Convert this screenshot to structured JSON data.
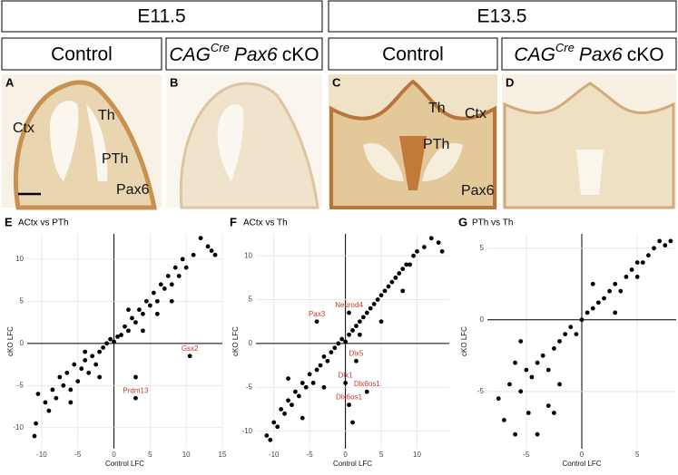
{
  "stages": [
    "E11.5",
    "E13.5"
  ],
  "panels": [
    {
      "letter": "A",
      "title": "Control",
      "labels": [
        "Ctx",
        "Th",
        "PTh",
        "Pax6"
      ]
    },
    {
      "letter": "B",
      "title": {
        "driver": "CAG",
        "superscript": "Cre",
        "gene": "Pax6",
        "suffix": "cKO"
      }
    },
    {
      "letter": "C",
      "title": "Control",
      "labels": [
        "Ctx",
        "Th",
        "PTh",
        "Pax6"
      ]
    },
    {
      "letter": "D",
      "title": {
        "driver": "CAG",
        "superscript": "Cre",
        "gene": "Pax6",
        "suffix": "cKO"
      }
    }
  ],
  "chart_data": [
    {
      "type": "scatter",
      "letter": "E",
      "title": "ACtx vs PTh",
      "x_label": "Control LFC",
      "y_label": "cKO LFC",
      "xlim": [
        -12,
        15
      ],
      "ylim": [
        -12.5,
        13
      ],
      "xticks": [
        -10,
        -5,
        0,
        5,
        10,
        15
      ],
      "yticks": [
        -10,
        -5,
        0,
        5,
        10
      ],
      "grid": true,
      "color": "#000000",
      "x": [
        -11,
        -10.8,
        -10.5,
        -9.5,
        -9,
        -8.5,
        -8,
        -7.5,
        -7,
        -6.5,
        -6,
        -5.5,
        -5,
        -4.5,
        -4,
        -3.5,
        -3,
        -2.5,
        -2,
        -1.5,
        -1,
        -0.5,
        0,
        0.5,
        1,
        1.5,
        2,
        2.5,
        3,
        3.5,
        4,
        4.5,
        5,
        5.5,
        6,
        6.5,
        7,
        7.5,
        8,
        8.5,
        9,
        9.5,
        10,
        11,
        12,
        13,
        13.5,
        14,
        -4,
        -2,
        2,
        4,
        6,
        8,
        -6,
        3
      ],
      "y": [
        -11,
        -9.5,
        -6,
        -7,
        -8,
        -5.5,
        -6.5,
        -4,
        -5,
        -3.5,
        -5.5,
        -2.5,
        -4.5,
        -3,
        -2,
        -3.5,
        -1.5,
        -2.5,
        -1,
        -0.5,
        0,
        0.5,
        0.2,
        0.8,
        1,
        2,
        1.5,
        3,
        2.5,
        4,
        3.5,
        5,
        4.5,
        6,
        5,
        7,
        6.5,
        8,
        7,
        9,
        8,
        10,
        9,
        10.5,
        12.5,
        11.5,
        11,
        10.5,
        -1,
        -4,
        4,
        1.5,
        3.5,
        5,
        -7,
        -4
      ],
      "highlights": [
        {
          "name": "Gsx2",
          "x": 10.5,
          "y": -1.5
        },
        {
          "name": "Prdm13",
          "x": 3,
          "y": -6.5
        }
      ]
    },
    {
      "type": "scatter",
      "letter": "F",
      "title": "ACtx vs Th",
      "x_label": "Control LFC",
      "y_label": "cKO LFC",
      "xlim": [
        -12.5,
        14.5
      ],
      "ylim": [
        -12,
        12.5
      ],
      "xticks": [
        -10,
        -5,
        0,
        5,
        10
      ],
      "yticks": [
        -10,
        -5,
        0,
        5,
        10
      ],
      "grid": true,
      "color": "#000000",
      "x": [
        -11,
        -10.5,
        -10,
        -9.5,
        -9,
        -8.5,
        -8,
        -7.5,
        -7,
        -6.5,
        -6,
        -5.5,
        -5,
        -4.5,
        -4,
        -3.5,
        -3,
        -2.5,
        -2,
        -1.5,
        -1,
        -0.5,
        0,
        0.5,
        1,
        1.5,
        2,
        2.5,
        3,
        3.5,
        4,
        4.5,
        5,
        5.5,
        6,
        6.5,
        7,
        7.5,
        8,
        8.5,
        9,
        9.5,
        10,
        11,
        12,
        13,
        13.5,
        -6,
        -3,
        2,
        5,
        8,
        -8,
        1
      ],
      "y": [
        -10.5,
        -11,
        -9,
        -9.5,
        -7.5,
        -8,
        -6.5,
        -7,
        -5.5,
        -6,
        -4.5,
        -5,
        -3.5,
        -4.5,
        -3,
        -2.5,
        -1.5,
        -2,
        -1,
        -0.5,
        0,
        0.5,
        0.2,
        1,
        1.5,
        2,
        2.5,
        3,
        3.5,
        4,
        4.5,
        5,
        5.5,
        6,
        6.5,
        7,
        7.5,
        8,
        8.5,
        9,
        9,
        10,
        10.5,
        11,
        12,
        11.5,
        10.5,
        -8.5,
        -5,
        1,
        2.5,
        6,
        -4,
        -9
      ],
      "highlights": [
        {
          "name": "Neurod4",
          "x": 0.5,
          "y": 3.5
        },
        {
          "name": "Pax3",
          "x": -4,
          "y": 2.5
        },
        {
          "name": "Dlx5",
          "x": 1.5,
          "y": -2
        },
        {
          "name": "Dlx1",
          "x": 0,
          "y": -4.5
        },
        {
          "name": "Dlx6os1",
          "x": 3,
          "y": -5.5
        },
        {
          "name": "Dlx6os1",
          "x": 0.5,
          "y": -7
        }
      ]
    },
    {
      "type": "scatter",
      "letter": "G",
      "title": "PTh vs Th",
      "x_label": "Control LFC",
      "y_label": "cKO LFC",
      "xlim": [
        -8.5,
        8.5
      ],
      "ylim": [
        -9,
        6
      ],
      "xticks": [
        -5,
        0,
        5
      ],
      "yticks": [
        -5,
        0,
        5
      ],
      "grid": true,
      "color": "#000000",
      "x": [
        -7.5,
        -7,
        -6.5,
        -6,
        -5.5,
        -5,
        -4.8,
        -4.5,
        -4,
        -3.5,
        -3,
        -2.5,
        -2,
        -1.5,
        -1,
        -0.5,
        0,
        0.5,
        1,
        1.5,
        2,
        2.5,
        3,
        3.5,
        4,
        4.5,
        5,
        5.5,
        6,
        6.5,
        7,
        7.5,
        8,
        -6,
        -4,
        -2,
        -3,
        1,
        3,
        5,
        -5.5,
        -2.5
      ],
      "y": [
        -5.5,
        -7,
        -4.5,
        -8,
        -5,
        -3.5,
        -6.5,
        -4,
        -3,
        -2.5,
        -3.5,
        -2,
        -1.5,
        -1,
        -0.5,
        -1,
        0,
        0.5,
        0.8,
        1.2,
        1.5,
        2,
        2.5,
        2,
        3,
        3.5,
        3,
        4,
        4.5,
        5,
        5.5,
        5.2,
        5.5,
        -3,
        -8,
        -4.5,
        -6,
        2.5,
        0.5,
        4,
        -1.5,
        -6.5
      ],
      "highlights": []
    }
  ]
}
